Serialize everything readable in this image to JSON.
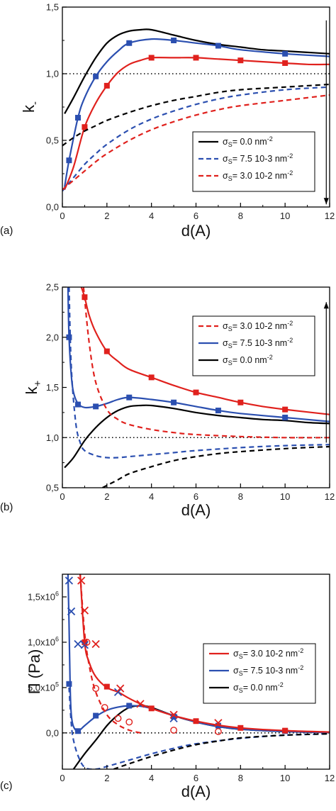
{
  "colors": {
    "black": "#000000",
    "blue": "#2b4fb0",
    "red": "#e0211d"
  },
  "chart_data": [
    {
      "type": "line",
      "panel_label": "(a)",
      "xlabel": "d(A)",
      "ylabel_main": "k",
      "ylabel_sub": "-",
      "xlim": [
        0,
        12
      ],
      "ylim": [
        0,
        1.5
      ],
      "xticks": [
        0,
        2,
        4,
        6,
        8,
        10,
        12
      ],
      "xtick_labels": [
        "0",
        "2",
        "4",
        "6",
        "8",
        "10",
        "12"
      ],
      "yticks": [
        0,
        0.5,
        1.0,
        1.5
      ],
      "ytick_labels": [
        "0,0",
        "0,5",
        "1,0",
        "1,5"
      ],
      "reference_line": 1.0,
      "arrow": {
        "x": 11.85,
        "from": 1.4,
        "to": 0.02,
        "direction": "down"
      },
      "legend": {
        "position": "center-right",
        "entries": [
          {
            "label": "σS= 0.0  nm-2",
            "color": "#000000",
            "dash": false
          },
          {
            "label": "σS= 7.5 10-3   nm-2",
            "color": "#2b4fb0",
            "dash": true
          },
          {
            "label": "σS= 3.0 10-2  nm-2",
            "color": "#e0211d",
            "dash": true
          }
        ]
      },
      "series": [
        {
          "color": "#000000",
          "style": "solid",
          "x": [
            0.1,
            0.5,
            1,
            1.5,
            2,
            2.5,
            3,
            3.5,
            4,
            5,
            6,
            7,
            8,
            9,
            10,
            11,
            12
          ],
          "y": [
            0.7,
            0.82,
            0.98,
            1.12,
            1.23,
            1.29,
            1.32,
            1.33,
            1.33,
            1.29,
            1.25,
            1.22,
            1.2,
            1.18,
            1.17,
            1.16,
            1.15
          ]
        },
        {
          "color": "#2b4fb0",
          "style": "solid",
          "markers": "square",
          "x": [
            0.1,
            0.3,
            0.7,
            1,
            1.5,
            2,
            2.5,
            3,
            4,
            5,
            6,
            7,
            8,
            10,
            12
          ],
          "y": [
            0.15,
            0.35,
            0.67,
            0.82,
            0.98,
            1.09,
            1.17,
            1.23,
            1.26,
            1.25,
            1.23,
            1.21,
            1.18,
            1.15,
            1.13
          ],
          "marker_x": [
            0.3,
            0.7,
            1.5,
            3,
            5,
            7,
            10
          ],
          "marker_y": [
            0.35,
            0.67,
            0.98,
            1.23,
            1.25,
            1.21,
            1.15
          ]
        },
        {
          "color": "#e0211d",
          "style": "solid",
          "markers": "square",
          "x": [
            0.1,
            0.5,
            1,
            1.5,
            2,
            2.5,
            3,
            3.5,
            4,
            5,
            6,
            7,
            8,
            9,
            10,
            11,
            12
          ],
          "y": [
            0.13,
            0.3,
            0.6,
            0.78,
            0.91,
            1.01,
            1.07,
            1.1,
            1.12,
            1.12,
            1.12,
            1.11,
            1.1,
            1.09,
            1.08,
            1.07,
            1.07
          ],
          "marker_x": [
            1,
            2,
            4,
            6,
            8,
            10
          ],
          "marker_y": [
            0.6,
            0.91,
            1.12,
            1.12,
            1.1,
            1.08
          ]
        },
        {
          "color": "#000000",
          "style": "dashed",
          "x": [
            0,
            0.5,
            1,
            1.5,
            2,
            3,
            4,
            5,
            6,
            7,
            8,
            10,
            12
          ],
          "y": [
            0.46,
            0.52,
            0.57,
            0.61,
            0.65,
            0.71,
            0.76,
            0.8,
            0.83,
            0.86,
            0.88,
            0.9,
            0.92
          ]
        },
        {
          "color": "#2b4fb0",
          "style": "dashed",
          "x": [
            0,
            0.5,
            1,
            1.5,
            2,
            3,
            4,
            5,
            6,
            7,
            8,
            10,
            12
          ],
          "y": [
            0.12,
            0.22,
            0.32,
            0.4,
            0.47,
            0.58,
            0.66,
            0.72,
            0.77,
            0.81,
            0.84,
            0.88,
            0.9
          ]
        },
        {
          "color": "#e0211d",
          "style": "dashed",
          "x": [
            0,
            0.5,
            1,
            1.5,
            2,
            3,
            4,
            5,
            6,
            7,
            8,
            10,
            12
          ],
          "y": [
            0.13,
            0.2,
            0.27,
            0.34,
            0.4,
            0.5,
            0.58,
            0.64,
            0.69,
            0.73,
            0.76,
            0.8,
            0.84
          ]
        }
      ]
    },
    {
      "type": "line",
      "panel_label": "(b)",
      "xlabel": "d(A)",
      "ylabel_main": "k",
      "ylabel_sub": "+",
      "xlim": [
        0,
        12
      ],
      "ylim": [
        0.5,
        2.5
      ],
      "xticks": [
        0,
        2,
        4,
        6,
        8,
        10,
        12
      ],
      "xtick_labels": [
        "0",
        "2",
        "4",
        "6",
        "8",
        "10",
        "12"
      ],
      "yticks": [
        0.5,
        1.0,
        1.5,
        2.0,
        2.5
      ],
      "ytick_labels": [
        "0,5",
        "1,0",
        "1,5",
        "2,0",
        "2,5"
      ],
      "reference_line": 1.0,
      "arrow": {
        "x": 11.85,
        "from": 0.95,
        "to": 2.35,
        "direction": "up"
      },
      "legend": {
        "position": "top-right",
        "entries": [
          {
            "label": "σS= 3.0 10-2  nm-2",
            "color": "#e0211d",
            "dash": true
          },
          {
            "label": "σS= 7.5 10-3   nm-2",
            "color": "#2b4fb0",
            "dash": false
          },
          {
            "label": "σS= 0.0  nm-2",
            "color": "#000000",
            "dash": false
          }
        ]
      },
      "series": [
        {
          "color": "#000000",
          "style": "solid",
          "x": [
            0.1,
            0.5,
            1,
            1.5,
            2,
            2.5,
            3,
            3.5,
            4,
            5,
            6,
            7,
            8,
            9,
            10,
            11,
            12
          ],
          "y": [
            0.7,
            0.8,
            0.97,
            1.1,
            1.2,
            1.27,
            1.31,
            1.32,
            1.32,
            1.29,
            1.25,
            1.22,
            1.2,
            1.18,
            1.17,
            1.15,
            1.14
          ]
        },
        {
          "color": "#2b4fb0",
          "style": "solid",
          "markers": "square",
          "x": [
            0.25,
            0.3,
            0.4,
            0.5,
            0.7,
            1,
            1.5,
            2,
            2.5,
            3,
            4,
            5,
            6,
            7,
            8,
            10,
            12
          ],
          "y": [
            2.5,
            2.0,
            1.62,
            1.45,
            1.34,
            1.3,
            1.31,
            1.34,
            1.38,
            1.4,
            1.38,
            1.35,
            1.31,
            1.27,
            1.24,
            1.2,
            1.16
          ],
          "marker_x": [
            0.3,
            0.7,
            1.5,
            3,
            5,
            7,
            10
          ],
          "marker_y": [
            2.0,
            1.33,
            1.31,
            1.4,
            1.35,
            1.27,
            1.2
          ]
        },
        {
          "color": "#e0211d",
          "style": "solid",
          "markers": "square",
          "x": [
            0.85,
            1,
            1.2,
            1.5,
            2,
            2.5,
            3,
            4,
            5,
            6,
            7,
            8,
            9,
            10,
            12
          ],
          "y": [
            2.5,
            2.4,
            2.22,
            2.05,
            1.86,
            1.76,
            1.68,
            1.6,
            1.52,
            1.45,
            1.4,
            1.35,
            1.31,
            1.28,
            1.23
          ],
          "marker_x": [
            1,
            2,
            4,
            6,
            8,
            10
          ],
          "marker_y": [
            2.4,
            1.86,
            1.6,
            1.45,
            1.35,
            1.28
          ]
        },
        {
          "color": "#000000",
          "style": "dashed",
          "x": [
            1.8,
            2.5,
            3,
            4,
            5,
            6,
            7,
            8,
            10,
            12
          ],
          "y": [
            0.5,
            0.58,
            0.64,
            0.71,
            0.77,
            0.81,
            0.84,
            0.86,
            0.89,
            0.91
          ]
        },
        {
          "color": "#2b4fb0",
          "style": "dashed",
          "x": [
            0.3,
            0.4,
            0.6,
            0.8,
            1,
            1.5,
            2,
            2.5,
            3,
            4,
            5,
            6,
            8,
            10,
            12
          ],
          "y": [
            2.5,
            1.7,
            1.15,
            0.95,
            0.87,
            0.82,
            0.8,
            0.8,
            0.81,
            0.83,
            0.85,
            0.87,
            0.9,
            0.92,
            0.93
          ]
        },
        {
          "color": "#e0211d",
          "style": "dashed",
          "x": [
            0.95,
            1.2,
            1.5,
            2,
            2.5,
            3,
            4,
            5,
            6,
            8,
            10,
            12
          ],
          "y": [
            2.5,
            1.95,
            1.55,
            1.28,
            1.18,
            1.13,
            1.08,
            1.05,
            1.03,
            1.01,
            1.0,
            1.0
          ]
        }
      ]
    },
    {
      "type": "line",
      "panel_label": "(c)",
      "xlabel": "d(A)",
      "ylabel_main": "Π (Pa)",
      "xlim": [
        0,
        12
      ],
      "ylim": [
        -400000,
        1750000
      ],
      "xticks": [
        0,
        2,
        4,
        6,
        8,
        10,
        12
      ],
      "xtick_labels": [
        "0",
        "2",
        "4",
        "6",
        "8",
        "10",
        "12"
      ],
      "yticks": [
        0,
        500000,
        1000000,
        1500000
      ],
      "ytick_labels": [
        "0,0",
        "5,0x10⁵",
        "1,0x10⁶",
        "1,5x10⁶"
      ],
      "reference_line": 0,
      "legend": {
        "position": "center-right",
        "entries": [
          {
            "label": "σS= 3.0 10-2  nm-2",
            "color": "#e0211d",
            "dash": false
          },
          {
            "label": "σS= 7.5 10-3   nm-2",
            "color": "#2b4fb0",
            "dash": false
          },
          {
            "label": "σS= 0.0  nm-2",
            "color": "#000000",
            "dash": false
          }
        ]
      },
      "series": [
        {
          "color": "#000000",
          "style": "solid",
          "x": [
            0.5,
            1,
            1.5,
            2,
            2.5,
            3,
            3.5,
            4,
            5,
            6,
            7,
            8,
            10,
            12
          ],
          "y": [
            -400000,
            -230000,
            -80000,
            80000,
            200000,
            280000,
            300000,
            280000,
            190000,
            120000,
            70000,
            40000,
            15000,
            5000
          ]
        },
        {
          "color": "#2b4fb0",
          "style": "solid",
          "markers": "square",
          "x": [
            0.25,
            0.3,
            0.35,
            0.4,
            0.5,
            0.7,
            1,
            1.5,
            2,
            2.5,
            3,
            3.5,
            4,
            5,
            6,
            7,
            8,
            10,
            12
          ],
          "y": [
            1750000,
            1200000,
            500000,
            200000,
            70000,
            20000,
            80000,
            180000,
            250000,
            285000,
            300000,
            295000,
            270000,
            190000,
            120000,
            70000,
            40000,
            15000,
            5000
          ],
          "marker_x": [
            0.3,
            0.7,
            1.5,
            3,
            5,
            7,
            10
          ],
          "marker_y": [
            540000,
            20000,
            190000,
            300000,
            180000,
            80000,
            20000
          ]
        },
        {
          "color": "#e0211d",
          "style": "solid",
          "markers": "square",
          "x": [
            0.8,
            1,
            1.2,
            1.5,
            2,
            2.5,
            3,
            3.5,
            4,
            5,
            6,
            7,
            8,
            10,
            12
          ],
          "y": [
            1750000,
            1000000,
            780000,
            620000,
            500000,
            450000,
            380000,
            320000,
            270000,
            190000,
            130000,
            85000,
            55000,
            25000,
            10000
          ],
          "marker_x": [
            1,
            2,
            4,
            6,
            8,
            10
          ],
          "marker_y": [
            1000000,
            510000,
            270000,
            130000,
            55000,
            25000
          ]
        },
        {
          "color": "#e0211d",
          "style": "dashed",
          "x": [
            0.8,
            1,
            1.2,
            1.5,
            2,
            2.5,
            3,
            3.5
          ],
          "y": [
            1750000,
            1100000,
            750000,
            450000,
            200000,
            90000,
            30000,
            0
          ]
        },
        {
          "color": "#2b4fb0",
          "style": "dashed",
          "x": [
            0.3,
            0.4,
            0.5,
            0.7,
            1,
            1.5,
            2,
            3,
            4,
            5,
            6,
            8,
            10,
            12
          ],
          "y": [
            500000,
            100000,
            -80000,
            -250000,
            -380000,
            -400000,
            -370000,
            -300000,
            -230000,
            -170000,
            -120000,
            -60000,
            -25000,
            -10000
          ]
        },
        {
          "color": "#000000",
          "style": "dashed",
          "x": [
            2.3,
            3,
            4,
            5,
            6,
            7,
            8,
            10,
            12
          ],
          "y": [
            -400000,
            -340000,
            -260000,
            -190000,
            -130000,
            -90000,
            -55000,
            -25000,
            -10000
          ]
        }
      ],
      "cross_markers": [
        {
          "color": "#2b4fb0",
          "x": [
            0.3,
            0.4,
            0.7,
            1.0,
            2.5,
            5.0
          ],
          "y": [
            1680000,
            1340000,
            980000,
            970000,
            450000,
            160000
          ]
        },
        {
          "color": "#e0211d",
          "x": [
            0.85,
            1.0,
            1.5,
            2.6,
            3.5,
            5.0,
            7.0
          ],
          "y": [
            1680000,
            1350000,
            980000,
            490000,
            320000,
            200000,
            110000
          ]
        }
      ],
      "circle_markers": [
        {
          "color": "#e0211d",
          "x": [
            1.1,
            1.5,
            1.9,
            2.5,
            3.0,
            5.0,
            7.0
          ],
          "y": [
            1000000,
            490000,
            280000,
            160000,
            120000,
            30000,
            15000
          ]
        }
      ]
    }
  ]
}
